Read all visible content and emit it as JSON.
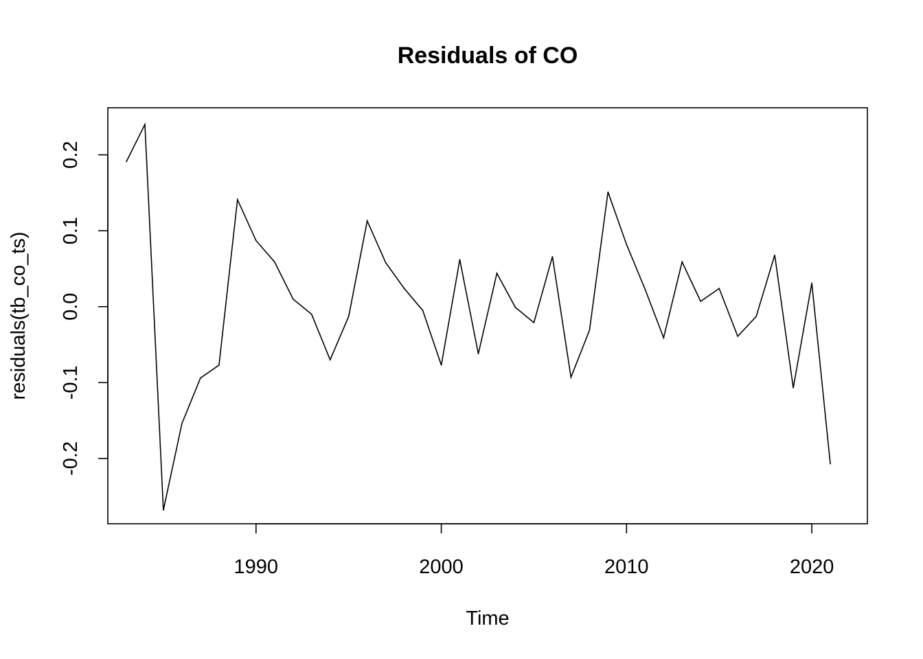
{
  "chart_data": {
    "type": "line",
    "title": "Residuals of CO",
    "xlabel": "Time",
    "ylabel": "residuals(tb_co_ts)",
    "xlim": [
      1982,
      2023
    ],
    "ylim": [
      -0.286,
      0.262
    ],
    "x_ticks": [
      1990,
      2000,
      2010,
      2020
    ],
    "x_tick_labels": [
      "1990",
      "2000",
      "2010",
      "2020"
    ],
    "y_ticks": [
      -0.2,
      -0.1,
      0.0,
      0.1,
      0.2
    ],
    "y_tick_labels": [
      "-0.2",
      "-0.1",
      "0.0",
      "0.1",
      "0.2"
    ],
    "grid": false,
    "color": "#000000",
    "x": [
      1983,
      1984,
      1985,
      1986,
      1987,
      1988,
      1989,
      1990,
      1991,
      1992,
      1993,
      1994,
      1995,
      1996,
      1997,
      1998,
      1999,
      2000,
      2001,
      2002,
      2003,
      2004,
      2005,
      2006,
      2007,
      2008,
      2009,
      2010,
      2011,
      2012,
      2013,
      2014,
      2015,
      2016,
      2017,
      2018,
      2019,
      2020,
      2021
    ],
    "values": [
      0.191,
      0.24,
      -0.268,
      -0.154,
      -0.094,
      -0.077,
      0.141,
      0.087,
      0.059,
      0.01,
      -0.01,
      -0.07,
      -0.013,
      0.113,
      0.058,
      0.024,
      -0.005,
      -0.077,
      0.062,
      -0.062,
      0.044,
      -0.001,
      -0.021,
      0.066,
      -0.093,
      -0.031,
      0.151,
      0.082,
      0.023,
      -0.041,
      0.059,
      0.007,
      0.024,
      -0.039,
      -0.013,
      0.068,
      -0.107,
      0.031,
      -0.207
    ]
  }
}
